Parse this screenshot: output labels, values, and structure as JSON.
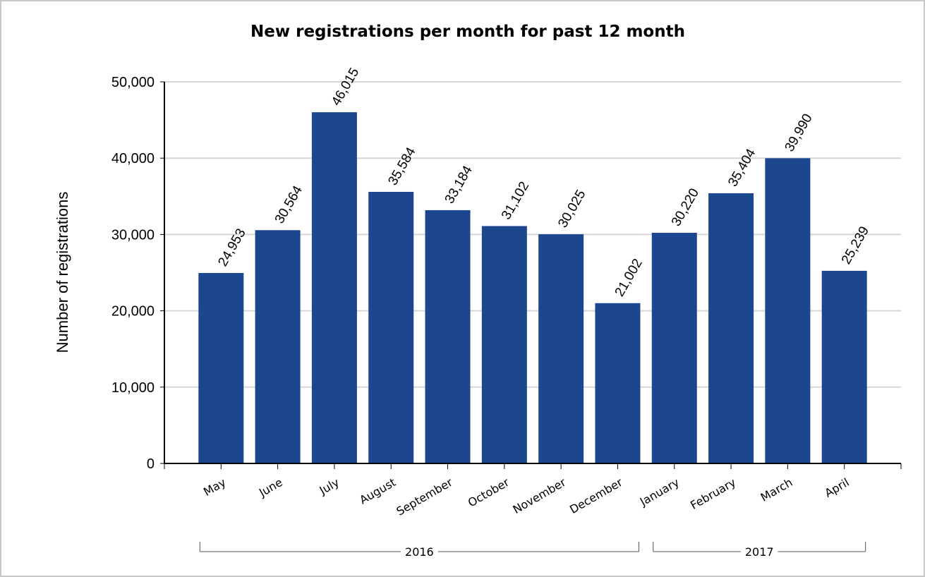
{
  "chart_data": {
    "type": "bar",
    "title": "New registrations per month for past 12 month",
    "y_label": "Number of registrations",
    "categories": [
      "May",
      "June",
      "July",
      "August",
      "September",
      "October",
      "November",
      "December",
      "January",
      "February",
      "March",
      "April"
    ],
    "category_groups": [
      "2016",
      "2016",
      "2016",
      "2016",
      "2016",
      "2016",
      "2016",
      "2016",
      "2017",
      "2017",
      "2017",
      "2017"
    ],
    "values": [
      24953,
      30564,
      46015,
      35584,
      33184,
      31102,
      30025,
      21002,
      30220,
      35404,
      39990,
      25239
    ],
    "value_labels": [
      "24,953",
      "30,564",
      "46,015",
      "35,584",
      "33,184",
      "31,102",
      "30,025",
      "21,002",
      "30,220",
      "35,404",
      "39,990",
      "25,239"
    ],
    "color": "#1c468e",
    "ylim": [
      0,
      50000
    ],
    "yticks": [
      0,
      {
        "value": 10000,
        "label": "10,000"
      },
      {
        "value": 20000,
        "label": "20,000"
      },
      {
        "value": 30000,
        "label": "30,000"
      },
      {
        "value": 40000,
        "label": "40,000"
      },
      {
        "value": 50000,
        "label": "50,000"
      }
    ],
    "grid": true
  }
}
